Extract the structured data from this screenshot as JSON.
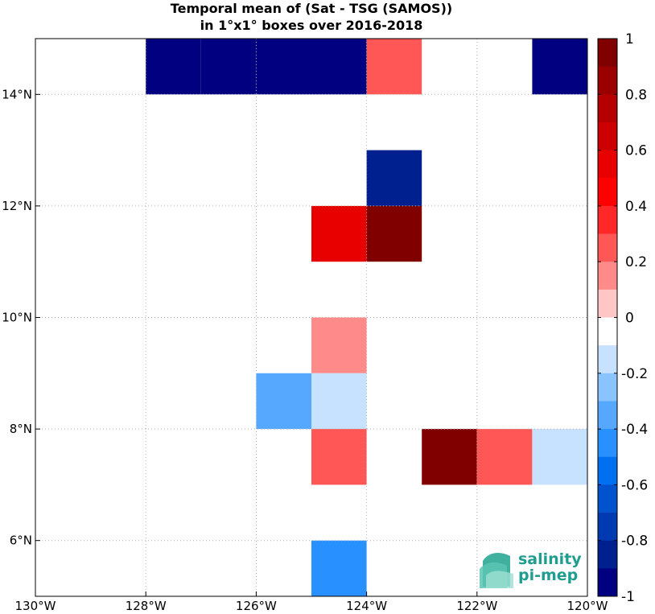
{
  "title_line1": "Temporal mean of (Sat - TSG (SAMOS))",
  "title_line2": "in 1°x1° boxes over 2016-2018",
  "logo": {
    "line1": "salinity",
    "line2": "pi-mep",
    "icon": "wave-icon"
  },
  "chart_data": {
    "type": "heatmap",
    "xlim": [
      -130,
      -120
    ],
    "ylim": [
      5,
      15
    ],
    "xticks": [
      -130,
      -128,
      -126,
      -124,
      -122,
      -120
    ],
    "xtick_labels": [
      "130°W",
      "128°W",
      "126°W",
      "124°W",
      "122°W",
      "120°W"
    ],
    "yticks": [
      6,
      8,
      10,
      12,
      14
    ],
    "ytick_labels": [
      "6°N",
      "8°N",
      "10°N",
      "12°N",
      "14°N"
    ],
    "grid": true,
    "cells": [
      {
        "lon": -128,
        "lat": 14,
        "value": -1.0
      },
      {
        "lon": -127,
        "lat": 14,
        "value": -1.0
      },
      {
        "lon": -126,
        "lat": 14,
        "value": -1.0
      },
      {
        "lon": -125,
        "lat": 14,
        "value": -1.0
      },
      {
        "lon": -124,
        "lat": 14,
        "value": 0.25
      },
      {
        "lon": -121,
        "lat": 14,
        "value": -1.0
      },
      {
        "lon": -124,
        "lat": 12,
        "value": -0.8
      },
      {
        "lon": -125,
        "lat": 11,
        "value": 0.55
      },
      {
        "lon": -124,
        "lat": 11,
        "value": 1.0
      },
      {
        "lon": -125,
        "lat": 9,
        "value": 0.15
      },
      {
        "lon": -126,
        "lat": 8,
        "value": -0.3
      },
      {
        "lon": -125,
        "lat": 8,
        "value": -0.15
      },
      {
        "lon": -125,
        "lat": 7,
        "value": 0.25
      },
      {
        "lon": -123,
        "lat": 7,
        "value": 1.0
      },
      {
        "lon": -122,
        "lat": 7,
        "value": 0.25
      },
      {
        "lon": -121,
        "lat": 7,
        "value": -0.15
      },
      {
        "lon": -125,
        "lat": 5,
        "value": -0.45
      }
    ],
    "colorbar": {
      "range": [
        -1,
        1
      ],
      "ticks": [
        1,
        0.8,
        0.6,
        0.4,
        0.2,
        0,
        -0.2,
        -0.4,
        -0.6,
        -0.8,
        -1
      ],
      "tick_labels": [
        "1",
        "0.8",
        "0.6",
        "0.4",
        "0.2",
        "0",
        "-0.2",
        "-0.4",
        "-0.6",
        "-0.8",
        "-1"
      ],
      "colors_top_to_bottom": [
        "#800000",
        "#9a0000",
        "#b40000",
        "#cd0000",
        "#e80000",
        "#ff0000",
        "#ff2828",
        "#ff5656",
        "#ff8a8a",
        "#ffc6c6",
        "#ffffff",
        "#c6e2ff",
        "#8ac4ff",
        "#56a8ff",
        "#2890ff",
        "#0070f0",
        "#0052cd",
        "#003ab0",
        "#002090",
        "#000080"
      ]
    }
  }
}
